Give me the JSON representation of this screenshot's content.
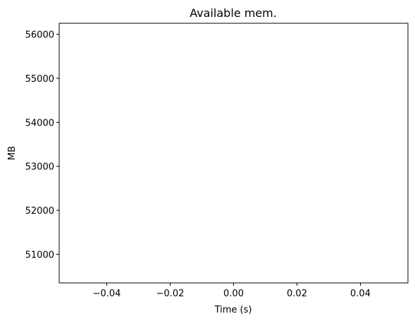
{
  "chart_data": {
    "type": "line",
    "title": "Available mem.",
    "xlabel": "Time (s)",
    "ylabel": "MB",
    "xlim": [
      -0.055,
      0.055
    ],
    "ylim": [
      50350,
      56250
    ],
    "x_ticks": [
      -0.04,
      -0.02,
      0.0,
      0.02,
      0.04
    ],
    "x_tick_labels": [
      "−0.04",
      "−0.02",
      "0.00",
      "0.02",
      "0.04"
    ],
    "y_ticks": [
      51000,
      52000,
      53000,
      54000,
      55000,
      56000
    ],
    "y_tick_labels": [
      "51000",
      "52000",
      "53000",
      "54000",
      "55000",
      "56000"
    ],
    "series": [],
    "grid": false,
    "colors": {
      "axis": "#000000",
      "background": "#ffffff"
    }
  }
}
